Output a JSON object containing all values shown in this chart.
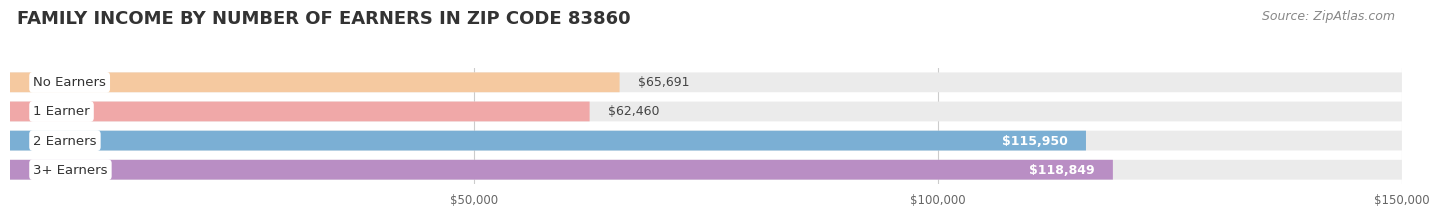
{
  "title": "FAMILY INCOME BY NUMBER OF EARNERS IN ZIP CODE 83860",
  "source_text": "Source: ZipAtlas.com",
  "categories": [
    "No Earners",
    "1 Earner",
    "2 Earners",
    "3+ Earners"
  ],
  "values": [
    65691,
    62460,
    115950,
    118849
  ],
  "bar_colors": [
    "#f5c9a0",
    "#f0a8a8",
    "#7bafd4",
    "#b98ec4"
  ],
  "label_colors": [
    "#444444",
    "#444444",
    "#ffffff",
    "#ffffff"
  ],
  "value_labels": [
    "$65,691",
    "$62,460",
    "$115,950",
    "$118,849"
  ],
  "background_color": "#ffffff",
  "bar_bg_color": "#ebebeb",
  "xmin": 0,
  "xmax": 150000,
  "xtick_values": [
    50000,
    100000,
    150000
  ],
  "xtick_labels": [
    "$50,000",
    "$100,000",
    "$150,000"
  ],
  "title_fontsize": 13,
  "source_fontsize": 9,
  "label_fontsize": 9.5,
  "value_fontsize": 9
}
